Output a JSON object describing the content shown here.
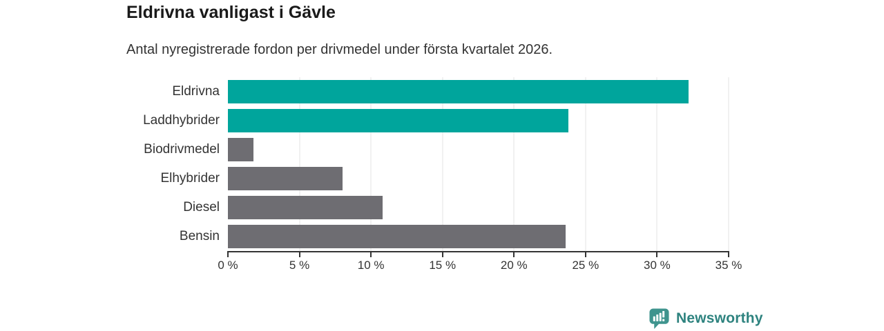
{
  "title": "Eldrivna vanligast i Gävle",
  "subtitle": "Antal nyregistrerade fordon per drivmedel under första kvartalet 2026.",
  "branding": {
    "logo_text": "Newsworthy",
    "logo_icon": "bar-chart-pin-icon"
  },
  "colors": {
    "highlight_bar": "#00a59c",
    "default_bar": "#6e6d72",
    "title_text": "#1a1a1a",
    "body_text": "#333333",
    "axis": "#333333",
    "gridline": "#e3e3e3",
    "logo_teal": "#2e837f",
    "logo_icon_teal": "#3f948e",
    "background": "#ffffff"
  },
  "chart_data": {
    "type": "bar",
    "orientation": "horizontal",
    "title": "Eldrivna vanligast i Gävle",
    "subtitle": "Antal nyregistrerade fordon per drivmedel under första kvartalet 2026.",
    "categories": [
      "Eldrivna",
      "Laddhybrider",
      "Biodrivmedel",
      "Elhybrider",
      "Diesel",
      "Bensin"
    ],
    "values": [
      32.2,
      23.8,
      1.8,
      8.0,
      10.8,
      23.6
    ],
    "unit": "%",
    "bar_colors": [
      "#00a59c",
      "#00a59c",
      "#6e6d72",
      "#6e6d72",
      "#6e6d72",
      "#6e6d72"
    ],
    "xlabel": "",
    "ylabel": "",
    "xlim": [
      0,
      35
    ],
    "x_ticks": [
      0,
      5,
      10,
      15,
      20,
      25,
      30,
      35
    ],
    "x_tick_labels": [
      "0 %",
      "5 %",
      "10 %",
      "15 %",
      "20 %",
      "25 %",
      "30 %",
      "35 %"
    ],
    "grid": "vertical",
    "legend": "none"
  }
}
